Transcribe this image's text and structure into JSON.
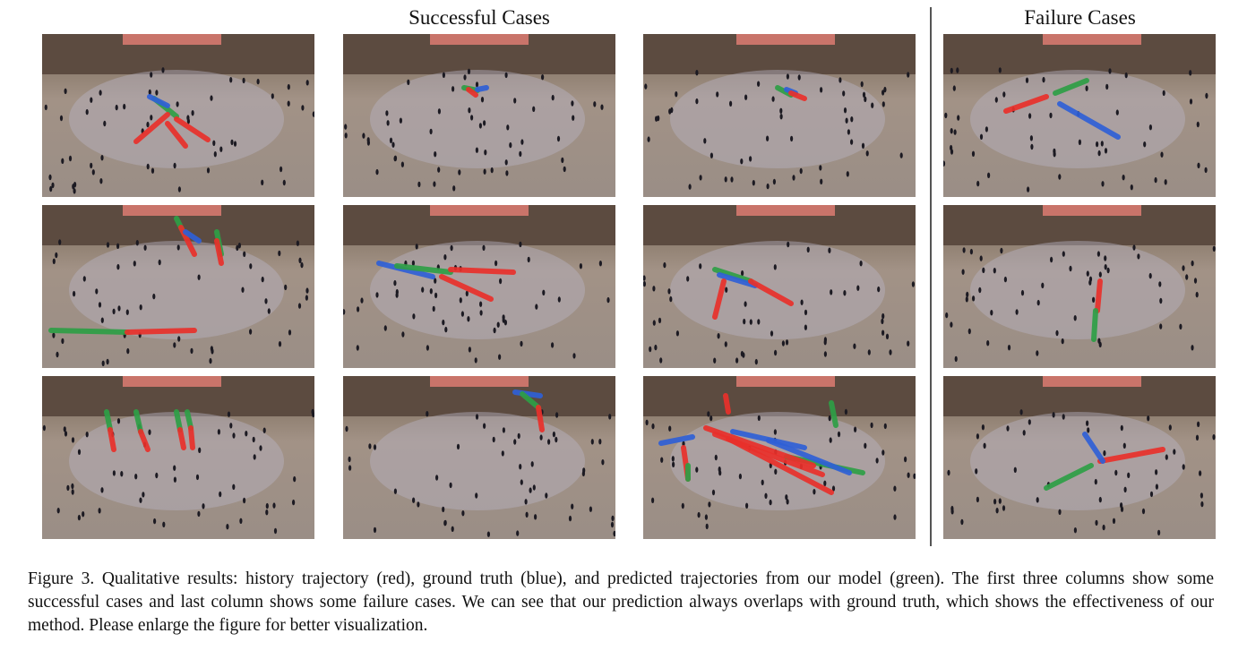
{
  "headings": {
    "successful": "Successful Cases",
    "failure": "Failure Cases"
  },
  "colors": {
    "history": "#e8302a",
    "ground_truth": "#2f5fd6",
    "prediction": "#2e9e45"
  },
  "panels": [
    {
      "row": 0,
      "col": 0,
      "group": "successful"
    },
    {
      "row": 0,
      "col": 1,
      "group": "successful"
    },
    {
      "row": 0,
      "col": 2,
      "group": "successful"
    },
    {
      "row": 0,
      "col": 3,
      "group": "failure"
    },
    {
      "row": 1,
      "col": 0,
      "group": "successful"
    },
    {
      "row": 1,
      "col": 1,
      "group": "successful"
    },
    {
      "row": 1,
      "col": 2,
      "group": "successful"
    },
    {
      "row": 1,
      "col": 3,
      "group": "failure"
    },
    {
      "row": 2,
      "col": 0,
      "group": "successful"
    },
    {
      "row": 2,
      "col": 1,
      "group": "successful"
    },
    {
      "row": 2,
      "col": 2,
      "group": "successful"
    },
    {
      "row": 2,
      "col": 3,
      "group": "failure"
    }
  ],
  "caption": "Figure 3. Qualitative results: history trajectory (red), ground truth (blue), and predicted trajectories from our model (green). The first three columns show some successful cases and last column shows some failure cases. We can see that our prediction always overlaps with ground truth, which shows the effectiveness of our method. Please enlarge the figure for better visualization."
}
